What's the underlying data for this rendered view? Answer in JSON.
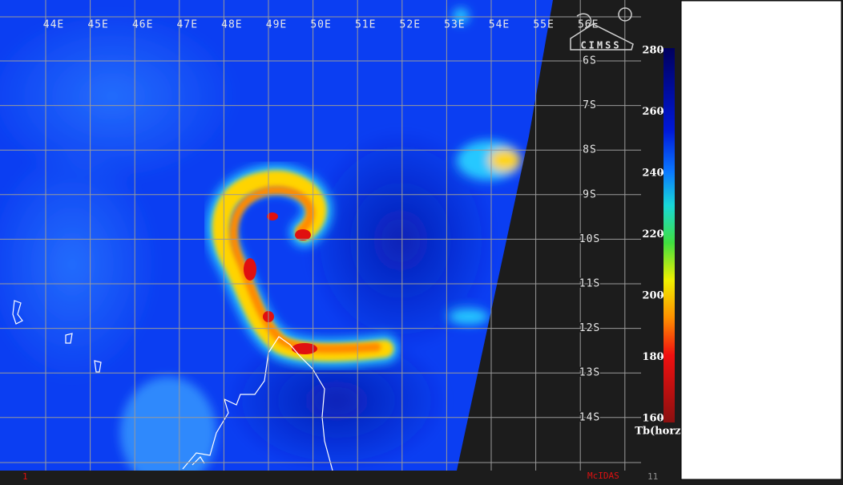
{
  "longitude_labels": [
    "44E",
    "45E",
    "46E",
    "47E",
    "48E",
    "49E",
    "50E",
    "51E",
    "52E",
    "53E",
    "54E",
    "55E",
    "56E"
  ],
  "latitude_labels": [
    "6S",
    "7S",
    "8S",
    "9S",
    "10S",
    "11S",
    "12S",
    "13S",
    "14S"
  ],
  "logo": "CIMSS",
  "colorbar": {
    "ticks": [
      280,
      260,
      240,
      220,
      200,
      180,
      160
    ],
    "lim": [
      160,
      280
    ],
    "label": "Tb(horz)"
  },
  "footer": {
    "frame": "1",
    "software": "McIDAS",
    "count": "11"
  }
}
